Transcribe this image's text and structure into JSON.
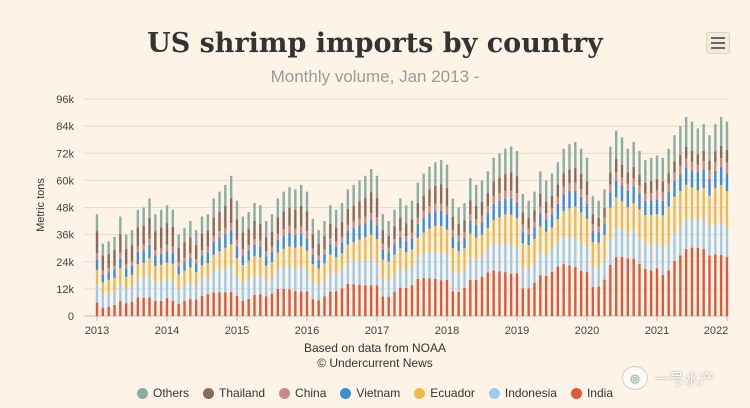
{
  "title": "US shrimp imports by country",
  "subtitle": "Monthly volume, Jan 2013 -",
  "credits": {
    "line1": "Based on data from NOAA",
    "line2": "© Undercurrent News"
  },
  "watermark": "一号水产",
  "colors": {
    "India": "#e0573a",
    "Indonesia": "#9ccbed",
    "Ecuador": "#f0b94e",
    "Vietnam": "#3a8fd9",
    "China": "#c98a85",
    "Thailand": "#8a6a5c",
    "Others": "#8cada4"
  },
  "chart_data": {
    "type": "bar",
    "stacked": true,
    "title": "US shrimp imports by country",
    "subtitle": "Monthly volume, Jan 2013 -",
    "ylabel": "Metric tons",
    "xlabel": "",
    "ylim": [
      0,
      96000
    ],
    "yticks": [
      "0",
      "12k",
      "24k",
      "36k",
      "48k",
      "60k",
      "72k",
      "84k",
      "96k"
    ],
    "xticks": [
      "2013",
      "2014",
      "2015",
      "2016",
      "2017",
      "2018",
      "2019",
      "2020",
      "2021",
      "2022"
    ],
    "grid": true,
    "legend_position": "bottom",
    "legend": [
      "Others",
      "Thailand",
      "China",
      "Vietnam",
      "Ecuador",
      "Indonesia",
      "India"
    ],
    "stack_order_bottom_to_top": [
      "India",
      "Indonesia",
      "Ecuador",
      "Vietnam",
      "China",
      "Thailand",
      "Others"
    ],
    "month_start": "2013-01",
    "totals": [
      45000,
      32000,
      33000,
      35000,
      44000,
      36000,
      38000,
      47000,
      48000,
      52000,
      45000,
      47000,
      49000,
      47000,
      36000,
      39000,
      42000,
      38000,
      44000,
      45000,
      52000,
      55000,
      58000,
      62000,
      51000,
      44000,
      46000,
      50000,
      49000,
      42000,
      45000,
      52000,
      55000,
      57000,
      56000,
      58000,
      55000,
      43000,
      38000,
      42000,
      49000,
      47000,
      50000,
      56000,
      58000,
      60000,
      62000,
      65000,
      62000,
      45000,
      42000,
      47000,
      52000,
      49000,
      51000,
      59000,
      63000,
      66000,
      68000,
      69000,
      67000,
      52000,
      48000,
      50000,
      61000,
      58000,
      60000,
      64000,
      70000,
      72000,
      74000,
      75000,
      73000,
      54000,
      51000,
      55000,
      64000,
      60000,
      63000,
      68000,
      74000,
      76000,
      77000,
      74000,
      70000,
      53000,
      51000,
      56000,
      75000,
      82000,
      79000,
      74000,
      77000,
      73000,
      69000,
      70000,
      71000,
      70000,
      74000,
      80000,
      84000,
      88000,
      86000,
      83000,
      85000,
      80000,
      85000,
      88000,
      86000
    ],
    "shares": {
      "India": [
        0.16,
        0.14,
        0.15,
        0.17,
        0.18,
        0.19,
        0.2,
        0.21,
        0.2,
        0.19,
        0.18,
        0.17
      ],
      "Indonesia": [
        0.17,
        0.18,
        0.18,
        0.17,
        0.17,
        0.17,
        0.17,
        0.17,
        0.18,
        0.18,
        0.18,
        0.18
      ],
      "Ecuador": [
        0.14,
        0.16,
        0.17,
        0.16,
        0.15,
        0.14,
        0.13,
        0.13,
        0.13,
        0.14,
        0.15,
        0.15
      ],
      "Vietnam": [
        0.1,
        0.1,
        0.1,
        0.1,
        0.1,
        0.1,
        0.1,
        0.11,
        0.11,
        0.11,
        0.1,
        0.1
      ],
      "China": [
        0.06,
        0.06,
        0.05,
        0.05,
        0.05,
        0.05,
        0.05,
        0.05,
        0.05,
        0.05,
        0.05,
        0.05
      ],
      "Thailand": [
        0.21,
        0.2,
        0.19,
        0.19,
        0.18,
        0.18,
        0.18,
        0.17,
        0.17,
        0.17,
        0.18,
        0.19
      ],
      "Others": [
        0.16,
        0.16,
        0.16,
        0.16,
        0.17,
        0.17,
        0.17,
        0.16,
        0.16,
        0.16,
        0.16,
        0.16
      ]
    },
    "india_trend_multiplier": [
      0.8,
      1.0,
      1.1,
      1.25,
      1.4,
      1.55,
      1.7,
      1.85,
      2.0,
      2.1
    ]
  }
}
